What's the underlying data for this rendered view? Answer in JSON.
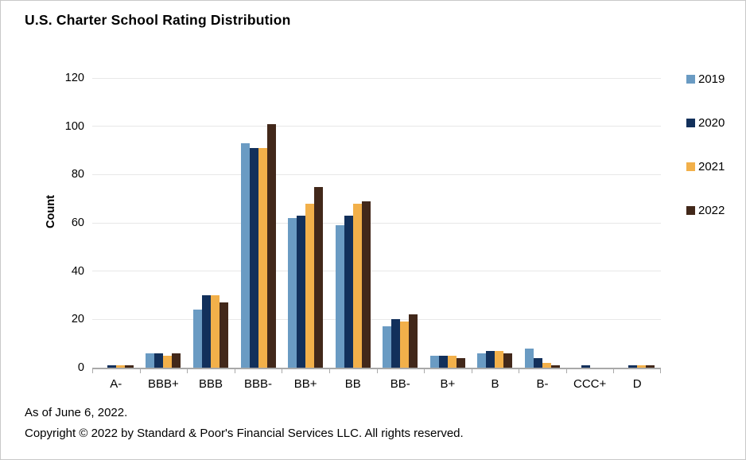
{
  "title": "U.S. Charter School Rating Distribution",
  "footer": {
    "line1": "As of June 6, 2022.",
    "line2": "Copyright © 2022 by Standard & Poor's Financial Services LLC. All rights reserved."
  },
  "chart_data": {
    "type": "bar",
    "title": "U.S. Charter School Rating Distribution",
    "xlabel": "",
    "ylabel": "Count",
    "ylim": [
      0,
      120
    ],
    "yticks": [
      0,
      20,
      40,
      60,
      80,
      100,
      120
    ],
    "grid": true,
    "legend_position": "right",
    "categories": [
      "A-",
      "BBB+",
      "BBB",
      "BBB-",
      "BB+",
      "BB",
      "BB-",
      "B+",
      "B",
      "B-",
      "CCC+",
      "D"
    ],
    "series": [
      {
        "name": "2019",
        "color": "#6a9bc3",
        "values": [
          0,
          6,
          24,
          93,
          62,
          59,
          17,
          5,
          6,
          8,
          0,
          0
        ]
      },
      {
        "name": "2020",
        "color": "#12305b",
        "values": [
          1,
          6,
          30,
          91,
          63,
          63,
          20,
          5,
          7,
          4,
          1,
          1
        ]
      },
      {
        "name": "2021",
        "color": "#f2b04a",
        "values": [
          1,
          5,
          30,
          91,
          68,
          68,
          19,
          5,
          7,
          2,
          0,
          1
        ]
      },
      {
        "name": "2022",
        "color": "#42281a",
        "values": [
          1,
          6,
          27,
          101,
          75,
          69,
          22,
          4,
          6,
          1,
          0,
          1
        ]
      }
    ],
    "axis_colors": {
      "gridline": "#e8e8e8",
      "axis": "#a9a9a9"
    }
  }
}
